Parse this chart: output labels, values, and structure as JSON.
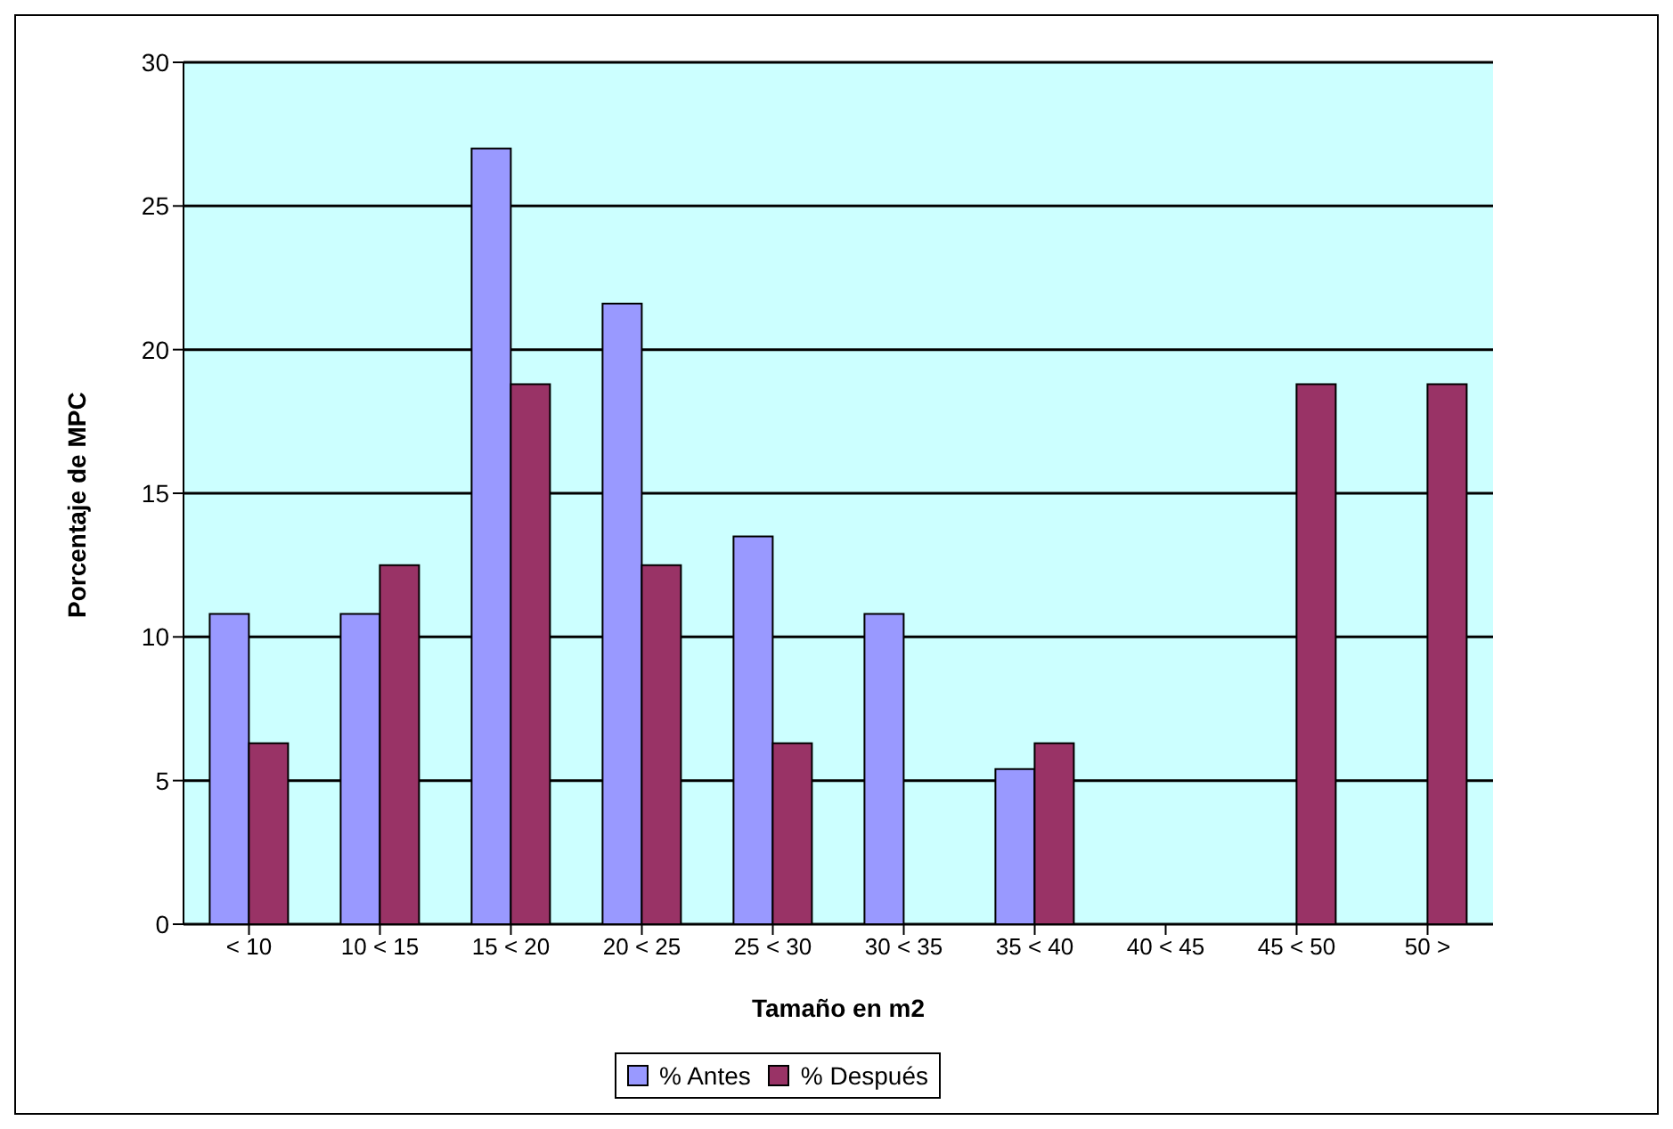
{
  "chart_data": {
    "type": "bar",
    "xlabel": "Tamaño en m2",
    "ylabel": "Porcentaje de MPC",
    "categories": [
      "< 10",
      "10 < 15",
      "15 < 20",
      "20 < 25",
      "25 < 30",
      "30 < 35",
      "35 < 40",
      "40 < 45",
      "45 < 50",
      "50 >"
    ],
    "series": [
      {
        "name": "% Antes",
        "color": "#9999ff",
        "values": [
          10.8,
          10.8,
          27.0,
          21.6,
          13.5,
          10.8,
          5.4,
          null,
          null,
          null
        ]
      },
      {
        "name": "% Después",
        "color": "#993366",
        "values": [
          6.3,
          12.5,
          18.8,
          12.5,
          6.3,
          null,
          6.3,
          null,
          18.8,
          18.8
        ]
      }
    ],
    "ylim": [
      0,
      30
    ],
    "yticks": [
      0,
      5,
      10,
      15,
      20,
      25,
      30
    ],
    "grid": "y",
    "legend": "bottom"
  }
}
